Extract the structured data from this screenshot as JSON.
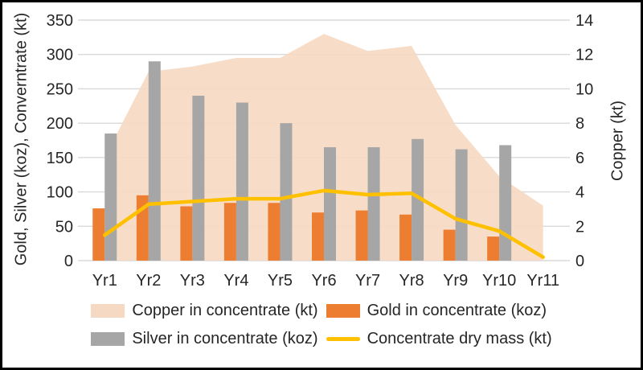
{
  "chart_data": {
    "type": "combo",
    "categories": [
      "Yr1",
      "Yr2",
      "Yr3",
      "Yr4",
      "Yr5",
      "Yr6",
      "Yr7",
      "Yr8",
      "Yr9",
      "Yr10",
      "Yr11"
    ],
    "ylabel_left": "Gold, Silver (koz), Converntrate (kt)",
    "ylabel_right": "Copper (kt)",
    "left_axis": {
      "min": 0,
      "max": 350,
      "step": 50,
      "ticks": [
        "350",
        "300",
        "250",
        "200",
        "150",
        "100",
        "50",
        "0"
      ]
    },
    "right_axis": {
      "min": 0,
      "max": 14,
      "step": 2,
      "ticks": [
        "14",
        "12",
        "10",
        "8",
        "6",
        "4",
        "2",
        "0"
      ]
    },
    "grid": true,
    "legend_position": "bottom",
    "series": [
      {
        "name": "Copper in concentrate (kt)",
        "type": "area",
        "axis": "right",
        "color": "#F6D9C2",
        "values": [
          6.0,
          11.0,
          11.3,
          11.8,
          11.8,
          13.2,
          12.2,
          12.5,
          7.9,
          4.9,
          3.2
        ]
      },
      {
        "name": "Gold in concentrate (koz)",
        "type": "bar",
        "axis": "left",
        "color": "#ED7D31",
        "values": [
          76,
          95,
          79,
          84,
          84,
          70,
          73,
          67,
          45,
          35,
          null
        ]
      },
      {
        "name": "Silver in concentrate (koz)",
        "type": "bar",
        "axis": "left",
        "color": "#A6A6A6",
        "values": [
          185,
          290,
          240,
          230,
          200,
          165,
          165,
          177,
          162,
          168,
          null
        ]
      },
      {
        "name": "Concentrate dry mass (kt)",
        "type": "line",
        "axis": "left",
        "color": "#FFC000",
        "values": [
          37,
          82,
          86,
          90,
          90,
          102,
          96,
          98,
          61,
          43,
          5
        ]
      }
    ]
  },
  "colors": {
    "gridline": "#D9D9D9",
    "tick": "#D9D9D9",
    "text": "#262626",
    "frame_border": "#000000",
    "background": "#FFFFFF"
  }
}
